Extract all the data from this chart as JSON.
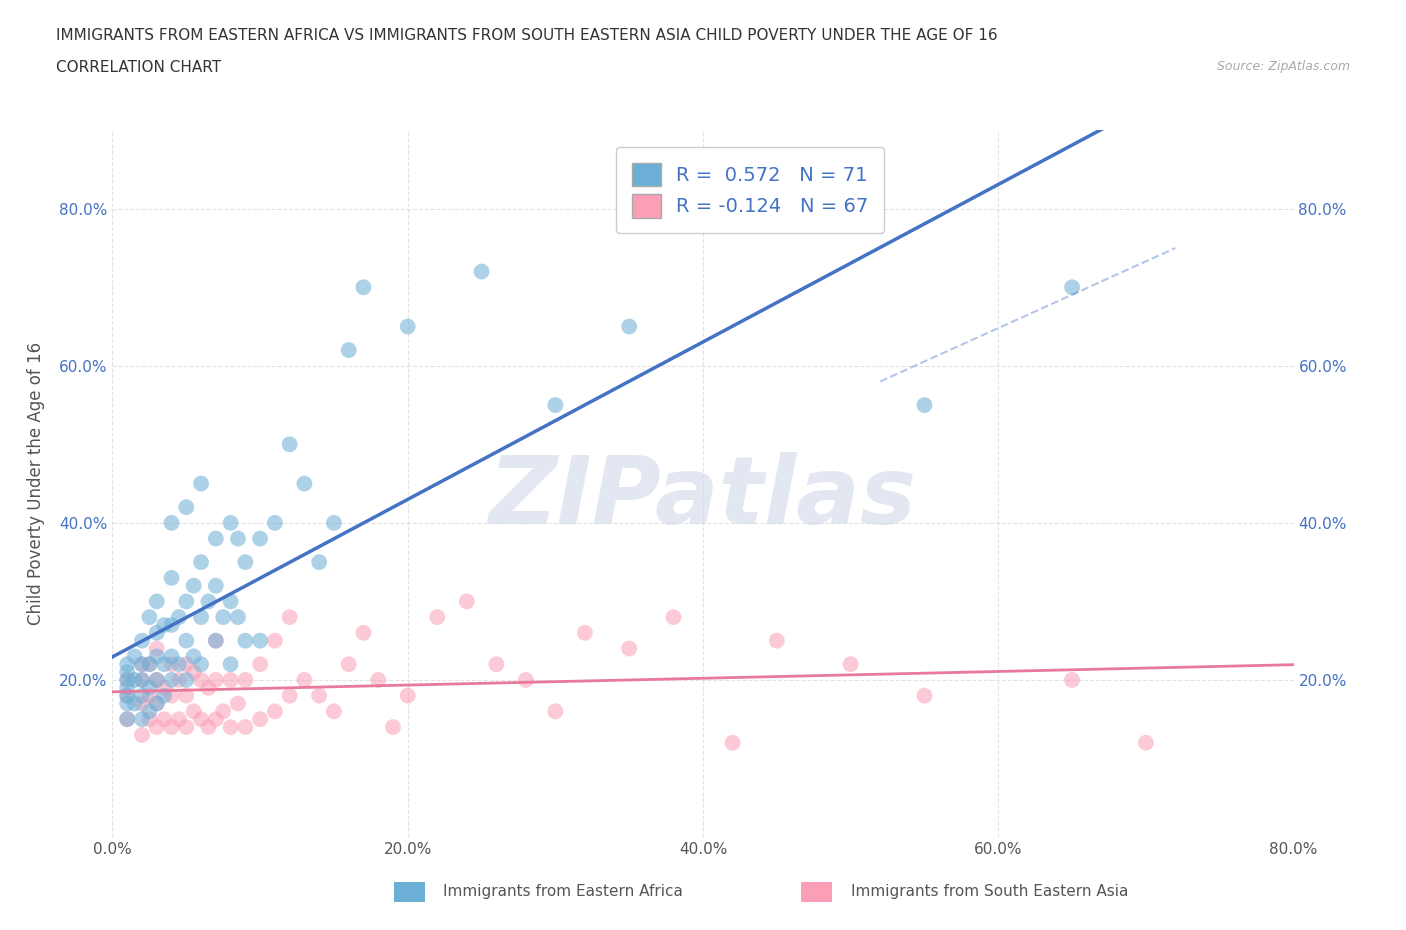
{
  "title_line1": "IMMIGRANTS FROM EASTERN AFRICA VS IMMIGRANTS FROM SOUTH EASTERN ASIA CHILD POVERTY UNDER THE AGE OF 16",
  "title_line2": "CORRELATION CHART",
  "source_text": "Source: ZipAtlas.com",
  "ylabel": "Child Poverty Under the Age of 16",
  "xlim": [
    0.0,
    0.8
  ],
  "ylim": [
    0.0,
    0.9
  ],
  "xtick_labels": [
    "0.0%",
    "20.0%",
    "40.0%",
    "60.0%",
    "80.0%"
  ],
  "xtick_vals": [
    0.0,
    0.2,
    0.4,
    0.6,
    0.8
  ],
  "ytick_labels": [
    "20.0%",
    "40.0%",
    "60.0%",
    "80.0%"
  ],
  "ytick_vals": [
    0.2,
    0.4,
    0.6,
    0.8
  ],
  "color_blue": "#6baed6",
  "color_pink": "#fa9fb5",
  "color_blue_line": "#4472c4",
  "color_pink_line": "#e8799a",
  "R_blue": 0.572,
  "N_blue": 71,
  "R_pink": -0.124,
  "N_pink": 67,
  "legend_label_blue": "Immigrants from Eastern Africa",
  "legend_label_pink": "Immigrants from South Eastern Asia",
  "watermark": "ZIPatlas",
  "watermark_color": "#d0d8e8",
  "grid_color": "#e0e0e0",
  "background_color": "#ffffff",
  "blue_scatter_x": [
    0.01,
    0.01,
    0.01,
    0.01,
    0.01,
    0.01,
    0.01,
    0.015,
    0.015,
    0.015,
    0.02,
    0.02,
    0.02,
    0.02,
    0.02,
    0.025,
    0.025,
    0.025,
    0.025,
    0.03,
    0.03,
    0.03,
    0.03,
    0.03,
    0.035,
    0.035,
    0.035,
    0.04,
    0.04,
    0.04,
    0.04,
    0.04,
    0.045,
    0.045,
    0.05,
    0.05,
    0.05,
    0.05,
    0.055,
    0.055,
    0.06,
    0.06,
    0.06,
    0.06,
    0.065,
    0.07,
    0.07,
    0.07,
    0.075,
    0.08,
    0.08,
    0.08,
    0.085,
    0.085,
    0.09,
    0.09,
    0.1,
    0.1,
    0.11,
    0.12,
    0.13,
    0.14,
    0.15,
    0.16,
    0.17,
    0.2,
    0.25,
    0.3,
    0.35,
    0.55,
    0.65
  ],
  "blue_scatter_y": [
    0.15,
    0.17,
    0.18,
    0.19,
    0.2,
    0.21,
    0.22,
    0.17,
    0.2,
    0.23,
    0.15,
    0.18,
    0.2,
    0.22,
    0.25,
    0.16,
    0.19,
    0.22,
    0.28,
    0.17,
    0.2,
    0.23,
    0.26,
    0.3,
    0.18,
    0.22,
    0.27,
    0.2,
    0.23,
    0.27,
    0.33,
    0.4,
    0.22,
    0.28,
    0.2,
    0.25,
    0.3,
    0.42,
    0.23,
    0.32,
    0.22,
    0.28,
    0.35,
    0.45,
    0.3,
    0.25,
    0.32,
    0.38,
    0.28,
    0.22,
    0.3,
    0.4,
    0.28,
    0.38,
    0.25,
    0.35,
    0.25,
    0.38,
    0.4,
    0.5,
    0.45,
    0.35,
    0.4,
    0.62,
    0.7,
    0.65,
    0.72,
    0.55,
    0.65,
    0.55,
    0.7
  ],
  "pink_scatter_x": [
    0.01,
    0.01,
    0.01,
    0.02,
    0.02,
    0.02,
    0.02,
    0.025,
    0.025,
    0.025,
    0.03,
    0.03,
    0.03,
    0.03,
    0.035,
    0.035,
    0.04,
    0.04,
    0.04,
    0.045,
    0.045,
    0.05,
    0.05,
    0.05,
    0.055,
    0.055,
    0.06,
    0.06,
    0.065,
    0.065,
    0.07,
    0.07,
    0.07,
    0.075,
    0.08,
    0.08,
    0.085,
    0.09,
    0.09,
    0.1,
    0.1,
    0.11,
    0.11,
    0.12,
    0.12,
    0.13,
    0.14,
    0.15,
    0.16,
    0.17,
    0.18,
    0.19,
    0.2,
    0.22,
    0.24,
    0.26,
    0.28,
    0.3,
    0.32,
    0.35,
    0.38,
    0.42,
    0.45,
    0.5,
    0.55,
    0.65,
    0.7
  ],
  "pink_scatter_y": [
    0.15,
    0.18,
    0.2,
    0.13,
    0.17,
    0.2,
    0.22,
    0.15,
    0.18,
    0.22,
    0.14,
    0.17,
    0.2,
    0.24,
    0.15,
    0.19,
    0.14,
    0.18,
    0.22,
    0.15,
    0.2,
    0.14,
    0.18,
    0.22,
    0.16,
    0.21,
    0.15,
    0.2,
    0.14,
    0.19,
    0.15,
    0.2,
    0.25,
    0.16,
    0.14,
    0.2,
    0.17,
    0.14,
    0.2,
    0.15,
    0.22,
    0.16,
    0.25,
    0.18,
    0.28,
    0.2,
    0.18,
    0.16,
    0.22,
    0.26,
    0.2,
    0.14,
    0.18,
    0.28,
    0.3,
    0.22,
    0.2,
    0.16,
    0.26,
    0.24,
    0.28,
    0.12,
    0.25,
    0.22,
    0.18,
    0.2,
    0.12
  ]
}
